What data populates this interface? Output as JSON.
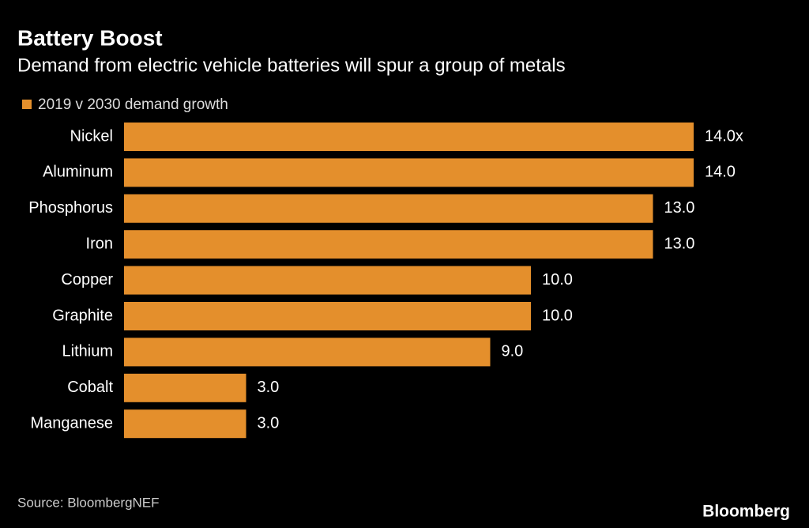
{
  "chart_data": {
    "type": "bar",
    "orientation": "horizontal",
    "title": "Battery Boost",
    "subtitle": "Demand from electric vehicle batteries will spur a group of metals",
    "categories": [
      "Nickel",
      "Aluminum",
      "Phosphorus",
      "Iron",
      "Copper",
      "Graphite",
      "Lithium",
      "Cobalt",
      "Manganese"
    ],
    "series": [
      {
        "name": "2019 v 2030 demand growth",
        "color": "#e48f2c",
        "values": [
          14,
          14,
          13,
          13,
          10,
          10,
          9,
          3,
          3
        ],
        "value_labels": [
          "14.0x",
          "14.0",
          "13.0",
          "13.0",
          "10.0",
          "10.0",
          "9.0",
          "3.0",
          "3.0"
        ]
      }
    ],
    "source": "Source: BloombergNEF",
    "brand": "Bloomberg"
  }
}
